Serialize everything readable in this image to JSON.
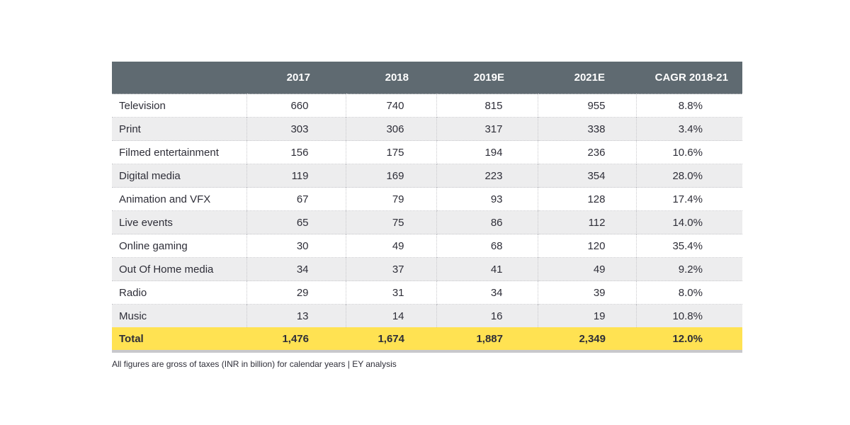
{
  "chart_data": {
    "type": "table",
    "columns": [
      "",
      "2017",
      "2018",
      "2019E",
      "2021E",
      "CAGR 2018-21"
    ],
    "rows": [
      {
        "label": "Television",
        "values": [
          "660",
          "740",
          "815",
          "955",
          "8.8%"
        ]
      },
      {
        "label": "Print",
        "values": [
          "303",
          "306",
          "317",
          "338",
          "3.4%"
        ]
      },
      {
        "label": "Filmed entertainment",
        "values": [
          "156",
          "175",
          "194",
          "236",
          "10.6%"
        ]
      },
      {
        "label": "Digital media",
        "values": [
          "119",
          "169",
          "223",
          "354",
          "28.0%"
        ]
      },
      {
        "label": "Animation and VFX",
        "values": [
          "67",
          "79",
          "93",
          "128",
          "17.4%"
        ]
      },
      {
        "label": "Live events",
        "values": [
          "65",
          "75",
          "86",
          "112",
          "14.0%"
        ]
      },
      {
        "label": "Online gaming",
        "values": [
          "30",
          "49",
          "68",
          "120",
          "35.4%"
        ]
      },
      {
        "label": "Out Of Home media",
        "values": [
          "34",
          "37",
          "41",
          "49",
          "9.2%"
        ]
      },
      {
        "label": "Radio",
        "values": [
          "29",
          "31",
          "34",
          "39",
          "8.0%"
        ]
      },
      {
        "label": "Music",
        "values": [
          "13",
          "14",
          "16",
          "19",
          "10.8%"
        ]
      }
    ],
    "total": {
      "label": "Total",
      "values": [
        "1,476",
        "1,674",
        "1,887",
        "2,349",
        "12.0%"
      ]
    },
    "footnote": "All figures are gross of taxes (INR in billion) for calendar years | EY analysis",
    "colors": {
      "header_bg": "#5f6a71",
      "total_bg": "#ffe252",
      "stripe_bg": "#ededee"
    }
  }
}
